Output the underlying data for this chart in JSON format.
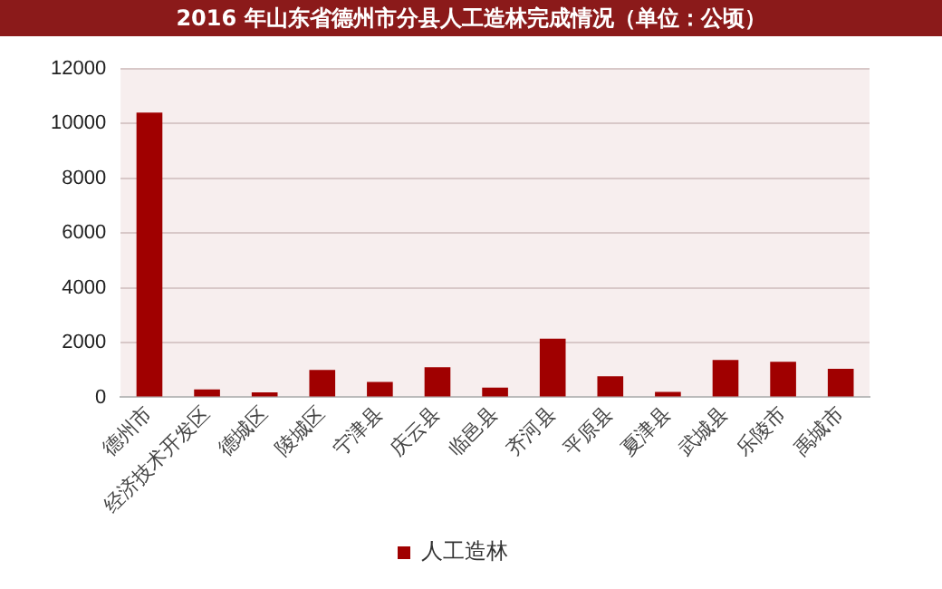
{
  "chart_data": {
    "type": "bar",
    "title": "2016 年山东省德州市分县人工造林完成情况（单位：公顷）",
    "categories": [
      "德州市",
      "经济技术开发区",
      "德城区",
      "陵城区",
      "宁津县",
      "庆云县",
      "临邑县",
      "齐河县",
      "平原县",
      "夏津县",
      "武城县",
      "乐陵市",
      "禹城市"
    ],
    "series": [
      {
        "name": "人工造林",
        "color": "#a00000",
        "values": [
          10400,
          290,
          180,
          1000,
          560,
          1100,
          350,
          2140,
          770,
          200,
          1360,
          1300,
          1040
        ]
      }
    ],
    "ylim": [
      0,
      12000
    ],
    "yticks": [
      0,
      2000,
      4000,
      6000,
      8000,
      10000,
      12000
    ],
    "grid": "y",
    "legend": "bottom"
  }
}
